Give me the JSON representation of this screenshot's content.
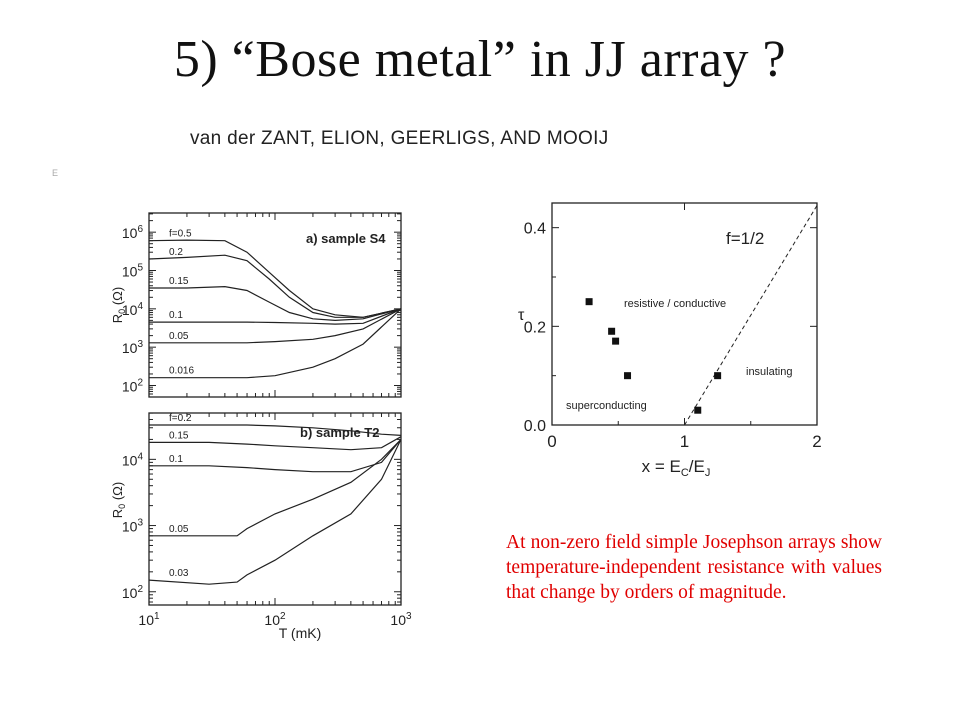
{
  "slide": {
    "title": "5)  “Bose metal” in JJ array ?",
    "authors": "van der ZANT, ELION, GEERLIGS, AND MOOIJ",
    "mark": "E",
    "note": "At non-zero field simple Josephson arrays show temperature-independent resistance with values that change by orders of magnitude."
  },
  "chart_data": [
    {
      "type": "line",
      "panel_label": "a) sample S4",
      "ylabel": "R0 (Ω)",
      "y_ticks": [
        {
          "base": "10",
          "exp": "6"
        },
        {
          "base": "10",
          "exp": "5"
        },
        {
          "base": "10",
          "exp": "4"
        },
        {
          "base": "10",
          "exp": "3"
        },
        {
          "base": "10",
          "exp": "2"
        }
      ],
      "ylim_log10": [
        1.7,
        6.5
      ],
      "xlim_log10": [
        1,
        3
      ],
      "y_scale": "log",
      "x_scale": "log",
      "series": [
        {
          "name": "f=0.5",
          "x": [
            10,
            20,
            40,
            60,
            90,
            130,
            200,
            300,
            500,
            1000
          ],
          "y": [
            600000,
            620000,
            600000,
            300000,
            90000,
            30000,
            10000,
            7000,
            6000,
            10000
          ]
        },
        {
          "name": "0.2",
          "x": [
            10,
            20,
            40,
            60,
            90,
            130,
            200,
            300,
            500,
            1000
          ],
          "y": [
            200000,
            220000,
            250000,
            180000,
            60000,
            20000,
            8000,
            6000,
            6000,
            10000
          ]
        },
        {
          "name": "0.15",
          "x": [
            10,
            20,
            40,
            60,
            90,
            130,
            200,
            300,
            500,
            1000
          ],
          "y": [
            35000,
            35000,
            38000,
            30000,
            15000,
            8000,
            5500,
            5000,
            5500,
            10000
          ]
        },
        {
          "name": "0.1",
          "x": [
            10,
            20,
            40,
            60,
            100,
            200,
            300,
            500,
            1000
          ],
          "y": [
            4500,
            4500,
            4500,
            4500,
            4400,
            4200,
            4000,
            4200,
            10000
          ]
        },
        {
          "name": "0.05",
          "x": [
            10,
            20,
            40,
            60,
            100,
            200,
            300,
            500,
            1000
          ],
          "y": [
            1300,
            1300,
            1300,
            1300,
            1400,
            1600,
            2000,
            3000,
            10000
          ]
        },
        {
          "name": "0.016",
          "x": [
            10,
            20,
            40,
            60,
            100,
            200,
            300,
            500,
            1000
          ],
          "y": [
            160,
            160,
            160,
            160,
            180,
            300,
            500,
            1200,
            10000
          ]
        }
      ]
    },
    {
      "type": "line",
      "panel_label": "b) sample T2",
      "xlabel": "T (mK)",
      "ylabel": "R0 (Ω)",
      "y_ticks": [
        {
          "base": "10",
          "exp": "4"
        },
        {
          "base": "10",
          "exp": "3"
        },
        {
          "base": "10",
          "exp": "2"
        }
      ],
      "x_ticks": [
        {
          "base": "10",
          "exp": "1"
        },
        {
          "base": "10",
          "exp": "2"
        },
        {
          "base": "10",
          "exp": "3"
        }
      ],
      "ylim_log10": [
        1.8,
        4.7
      ],
      "xlim_log10": [
        1,
        3
      ],
      "y_scale": "log",
      "x_scale": "log",
      "series": [
        {
          "name": "f=0.2",
          "x": [
            10,
            30,
            60,
            100,
            200,
            400,
            700,
            1000
          ],
          "y": [
            33000,
            33000,
            33000,
            32000,
            30000,
            27000,
            24000,
            23000
          ]
        },
        {
          "name": "0.15",
          "x": [
            10,
            30,
            60,
            100,
            200,
            400,
            700,
            1000
          ],
          "y": [
            18000,
            18000,
            17000,
            16000,
            15000,
            14000,
            15000,
            22000
          ]
        },
        {
          "name": "0.1",
          "x": [
            10,
            30,
            60,
            100,
            200,
            400,
            700,
            1000
          ],
          "y": [
            8000,
            8000,
            7500,
            7000,
            6500,
            6500,
            9000,
            20000
          ]
        },
        {
          "name": "0.05",
          "x": [
            10,
            30,
            50,
            60,
            100,
            200,
            400,
            700,
            1000
          ],
          "y": [
            700,
            700,
            700,
            900,
            1500,
            2500,
            4500,
            10000,
            20000
          ]
        },
        {
          "name": "0.03",
          "x": [
            10,
            30,
            50,
            60,
            100,
            200,
            400,
            700,
            1000
          ],
          "y": [
            150,
            130,
            140,
            180,
            300,
            700,
            1500,
            5000,
            20000
          ]
        }
      ]
    },
    {
      "type": "scatter",
      "panel_label": "f=1/2",
      "xlabel": "x = E",
      "xlabel_sub1": "C",
      "xlabel_mid": "/E",
      "xlabel_sub2": "J",
      "ylabel": "τ",
      "xlim": [
        0,
        2
      ],
      "ylim": [
        0,
        0.45
      ],
      "x_ticks": [
        "0",
        "1",
        "2"
      ],
      "y_ticks": [
        "0.0",
        "0.2",
        "0.4"
      ],
      "points": [
        {
          "x": 0.28,
          "y": 0.25
        },
        {
          "x": 0.45,
          "y": 0.19
        },
        {
          "x": 0.48,
          "y": 0.17
        },
        {
          "x": 0.57,
          "y": 0.1
        },
        {
          "x": 1.1,
          "y": 0.03
        },
        {
          "x": 1.25,
          "y": 0.1
        }
      ],
      "dashed_line": {
        "x": [
          1.0,
          2.0
        ],
        "y": [
          0.0,
          0.445
        ]
      },
      "annotations": [
        "resistive / conductive",
        "insulating",
        "superconducting"
      ]
    }
  ]
}
